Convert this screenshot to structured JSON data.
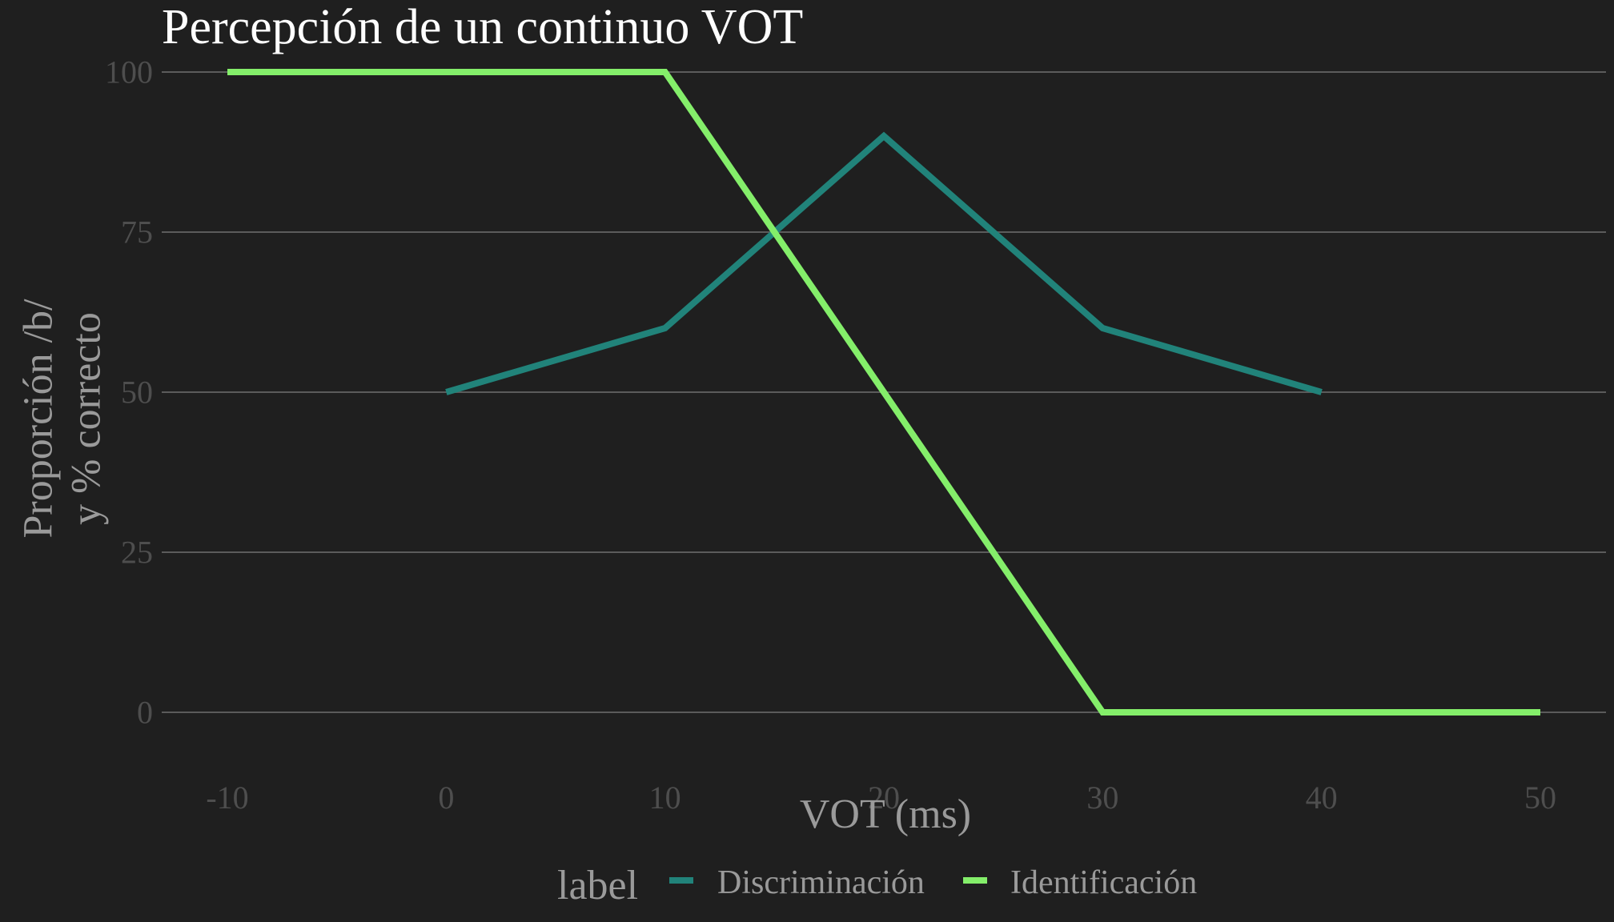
{
  "chart_data": {
    "type": "line",
    "title": "Percepción de un continuo VOT",
    "xlabel": "VOT (ms)",
    "ylabel_lines": [
      "Proporción /b/",
      "y % correcto"
    ],
    "xlim": [
      -13,
      53
    ],
    "ylim": [
      -9,
      103
    ],
    "xticks": [
      -10,
      0,
      10,
      20,
      30,
      40,
      50
    ],
    "yticks": [
      0,
      25,
      50,
      75,
      100
    ],
    "xtick_labels": [
      "-10",
      "0",
      "10",
      "20",
      "30",
      "40",
      "50"
    ],
    "ytick_labels": [
      "0",
      "25",
      "50",
      "75",
      "100"
    ],
    "grid": "horizontal-major",
    "legend": {
      "title": "label",
      "position": "bottom"
    },
    "series": [
      {
        "name": "Discriminación",
        "color": "#21837a",
        "x": [
          0,
          10,
          20,
          30,
          40
        ],
        "y": [
          50,
          60,
          90,
          60,
          50
        ]
      },
      {
        "name": "Identificación",
        "color": "#84ee6a",
        "x": [
          -10,
          10,
          20,
          30,
          50
        ],
        "y": [
          100,
          100,
          50,
          0,
          0
        ]
      }
    ]
  }
}
